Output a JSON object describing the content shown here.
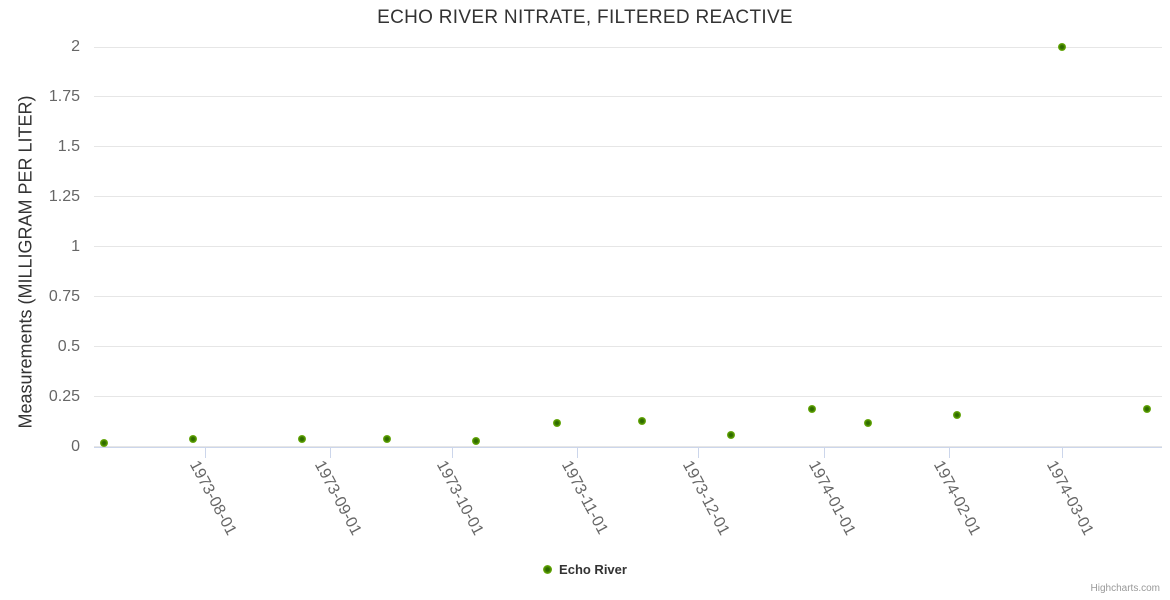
{
  "chart": {
    "title": "ECHO RIVER NITRATE, FILTERED REACTIVE",
    "y_axis_title": "Measurements (MILLIGRAM PER LITER)",
    "legend": {
      "label": "Echo River",
      "marker_icon": "circle-marker-icon"
    },
    "credits": "Highcharts.com"
  },
  "colors": {
    "marker_core": "#2f6b00",
    "marker_mid": "#5a9c00",
    "marker_outer": "#8cc63f",
    "gridline": "#e6e6e6",
    "axis_line": "#ccd6eb",
    "tick_label": "#666666",
    "title_text": "#333333",
    "credits_text": "#999999"
  },
  "chart_data": {
    "type": "scatter",
    "title": "ECHO RIVER NITRATE, FILTERED REACTIVE",
    "xlabel": "",
    "ylabel": "Measurements (MILLIGRAM PER LITER)",
    "x_type": "datetime",
    "x_range": [
      "1973-07-04",
      "1974-03-25"
    ],
    "ylim": [
      0,
      2
    ],
    "grid": true,
    "legend_position": "bottom-center",
    "y_ticks": [
      "0",
      "0.25",
      "0.5",
      "0.75",
      "1",
      "1.25",
      "1.5",
      "1.75",
      "2"
    ],
    "x_ticks": [
      "1973-08-01",
      "1973-09-01",
      "1973-10-01",
      "1973-11-01",
      "1973-12-01",
      "1974-01-01",
      "1974-02-01",
      "1974-03-01"
    ],
    "series": [
      {
        "name": "Echo River",
        "points": [
          {
            "date": "1973-07-07",
            "value": 0.02
          },
          {
            "date": "1973-07-29",
            "value": 0.04
          },
          {
            "date": "1973-08-25",
            "value": 0.04
          },
          {
            "date": "1973-09-15",
            "value": 0.04
          },
          {
            "date": "1973-10-07",
            "value": 0.03
          },
          {
            "date": "1973-10-27",
            "value": 0.12
          },
          {
            "date": "1973-11-17",
            "value": 0.13
          },
          {
            "date": "1973-12-09",
            "value": 0.06
          },
          {
            "date": "1973-12-29",
            "value": 0.19
          },
          {
            "date": "1974-01-12",
            "value": 0.12
          },
          {
            "date": "1974-02-03",
            "value": 0.16
          },
          {
            "date": "1974-03-01",
            "value": 2.0
          },
          {
            "date": "1974-03-22",
            "value": 0.19
          }
        ]
      }
    ]
  }
}
